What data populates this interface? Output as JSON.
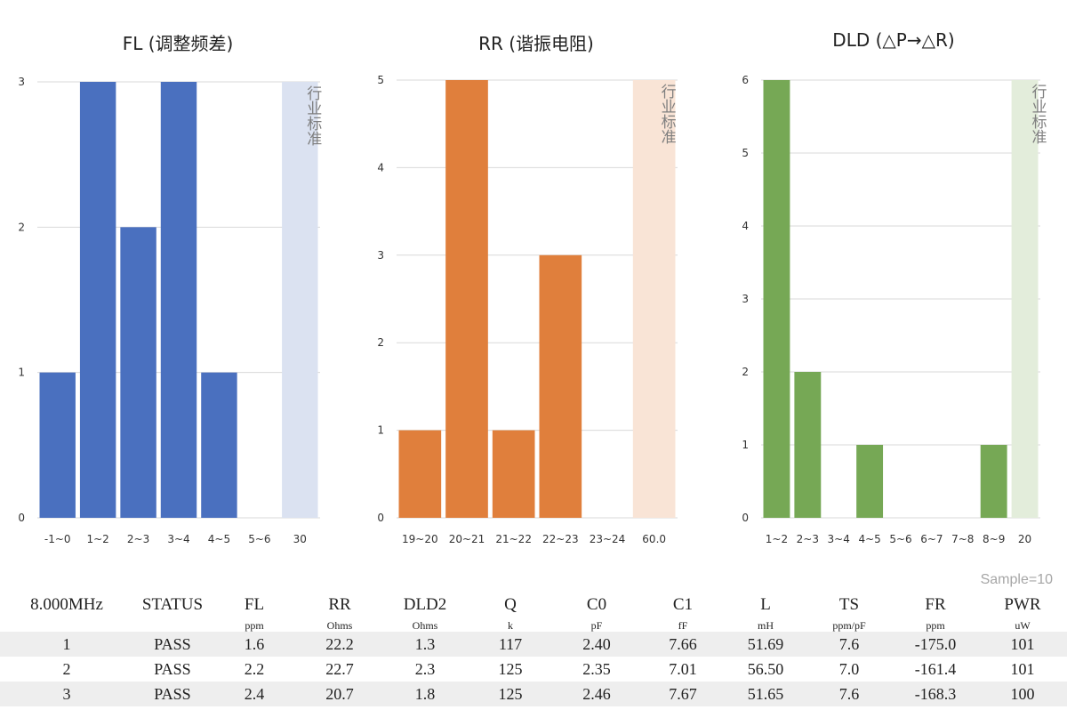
{
  "colors": {
    "fl": "#4a70bf",
    "rr": "#e07f3c",
    "dld": "#76a855",
    "fl_band": "#dbe2f1",
    "rr_band": "#f9e4d6",
    "dld_band": "#e3eddb",
    "grid": "#d9d9d9",
    "row_alt": "#eeeeee"
  },
  "chart_data": [
    {
      "id": "fl",
      "type": "bar",
      "title": "FL (调整频差)",
      "categories": [
        "-1~0",
        "1~2",
        "2~3",
        "3~4",
        "4~5",
        "5~6",
        "30"
      ],
      "values": [
        1,
        3,
        2,
        3,
        1,
        0,
        null
      ],
      "band": {
        "category": "30",
        "label": "行业标准"
      },
      "ylim": [
        0,
        3
      ],
      "yticks": [
        0,
        1,
        2,
        3
      ],
      "xlabel": "",
      "ylabel": "",
      "grid": true
    },
    {
      "id": "rr",
      "type": "bar",
      "title": "RR (谐振电阻)",
      "categories": [
        "19~20",
        "20~21",
        "21~22",
        "22~23",
        "23~24",
        "60.0"
      ],
      "values": [
        1,
        5,
        1,
        3,
        0,
        null
      ],
      "band": {
        "category": "60.0",
        "label": "行业标准"
      },
      "ylim": [
        0,
        5
      ],
      "yticks": [
        0,
        1,
        2,
        3,
        4,
        5
      ],
      "xlabel": "",
      "ylabel": "",
      "grid": true
    },
    {
      "id": "dld",
      "type": "bar",
      "title": "DLD (△P→△R)",
      "categories": [
        "1~2",
        "2~3",
        "3~4",
        "4~5",
        "5~6",
        "6~7",
        "7~8",
        "8~9",
        "20"
      ],
      "values": [
        6,
        2,
        0,
        1,
        0,
        0,
        0,
        1,
        null
      ],
      "band": {
        "category": "20",
        "label": "行业标准"
      },
      "ylim": [
        0,
        6
      ],
      "yticks": [
        0,
        1,
        2,
        3,
        4,
        5,
        6
      ],
      "xlabel": "",
      "ylabel": "",
      "grid": true
    }
  ],
  "sample_label": "Sample=10",
  "table": {
    "headers": [
      {
        "name": "8.000MHz",
        "unit": ""
      },
      {
        "name": "STATUS",
        "unit": ""
      },
      {
        "name": "FL",
        "unit": "ppm"
      },
      {
        "name": "RR",
        "unit": "Ohms"
      },
      {
        "name": "DLD2",
        "unit": "Ohms"
      },
      {
        "name": "Q",
        "unit": "k"
      },
      {
        "name": "C0",
        "unit": "pF"
      },
      {
        "name": "C1",
        "unit": "fF"
      },
      {
        "name": "L",
        "unit": "mH"
      },
      {
        "name": "TS",
        "unit": "ppm/pF"
      },
      {
        "name": "FR",
        "unit": "ppm"
      },
      {
        "name": "PWR",
        "unit": "uW"
      }
    ],
    "rows": [
      [
        "1",
        "PASS",
        "1.6",
        "22.2",
        "1.3",
        "117",
        "2.40",
        "7.66",
        "51.69",
        "7.6",
        "-175.0",
        "101"
      ],
      [
        "2",
        "PASS",
        "2.2",
        "22.7",
        "2.3",
        "125",
        "2.35",
        "7.01",
        "56.50",
        "7.0",
        "-161.4",
        "101"
      ],
      [
        "3",
        "PASS",
        "2.4",
        "20.7",
        "1.8",
        "125",
        "2.46",
        "7.67",
        "51.65",
        "7.6",
        "-168.3",
        "100"
      ]
    ]
  }
}
